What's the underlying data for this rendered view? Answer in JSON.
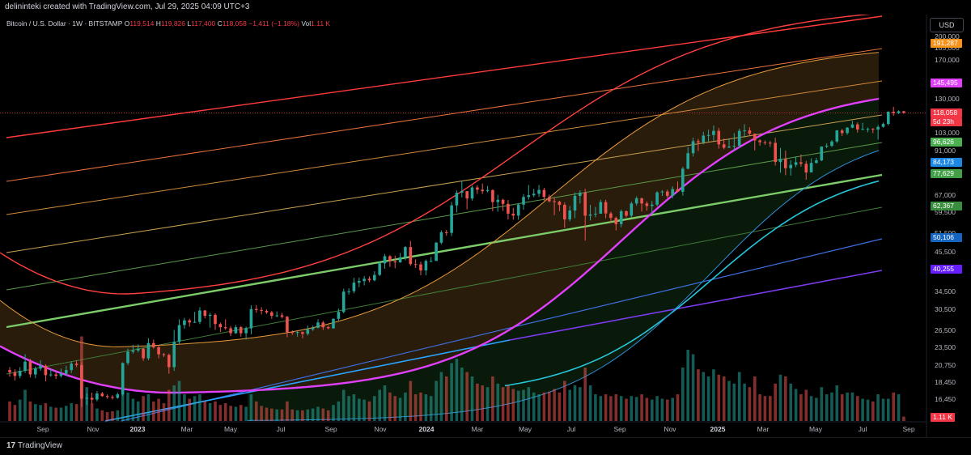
{
  "header": {
    "credit": "delininteki created with TradingView.com, Jul 29, 2025 04:09 UTC+3"
  },
  "legend": {
    "symbol": "Bitcoin / U.S. Dollar · 1W · BITSTAMP",
    "o_label": "O",
    "o": "119,514",
    "h_label": "H",
    "h": "119,826",
    "l_label": "L",
    "l": "117,400",
    "c_label": "C",
    "c": "118,058",
    "change": "−1,411 (−1.18%)",
    "vol_label": "Vol",
    "vol": "1.11 K"
  },
  "currency": "USD",
  "footer": {
    "brand": "TradingView"
  },
  "colors": {
    "background": "#000000",
    "up": "#26a69a",
    "down": "#ef5350",
    "magenta": "#e040fb",
    "red_curve": "#ff4d4d",
    "orange_band": "#e69a3c",
    "green_line": "#66bb6a",
    "cyan_curve": "#26c6da",
    "blue_line": "#2962ff",
    "purple_line": "#7b1fa2"
  },
  "chart_data": {
    "type": "candlestick",
    "scale": "log",
    "ylim": [
      15000,
      200000
    ],
    "y_ticks": [
      200000,
      185000,
      170000,
      130000,
      103000,
      91000,
      67000,
      59500,
      51500,
      45500,
      34500,
      30500,
      26500,
      23500,
      20750,
      18450,
      16450
    ],
    "y_tick_labels": [
      "200,000",
      "185,000",
      "170,000",
      "130,000",
      "103,000",
      "91,000",
      "67,000",
      "59,500",
      "51,500",
      "45,500",
      "34,500",
      "30,500",
      "26,500",
      "23,500",
      "20,750",
      "18,450",
      "16,450"
    ],
    "x_ticks": [
      "Sep",
      "Nov",
      "2023",
      "Mar",
      "May",
      "Jul",
      "Sep",
      "Nov",
      "2024",
      "Mar",
      "May",
      "Jul",
      "Sep",
      "Nov",
      "2025",
      "Mar",
      "May",
      "Jul",
      "Sep"
    ],
    "x_tick_bold": [
      "2023",
      "2024",
      "2025"
    ],
    "price_labels": [
      {
        "value": 191287,
        "text": "191,287",
        "color": "#f7931a"
      },
      {
        "value": 145495,
        "text": "145,495",
        "color": "#e040fb"
      },
      {
        "value": 118058,
        "text": "118,058",
        "color": "#f23645"
      },
      {
        "value": 118058,
        "text": "5d 23h",
        "color": "#f23645"
      },
      {
        "value": 96626,
        "text": "96,626",
        "color": "#4caf50"
      },
      {
        "value": 84173,
        "text": "84,173",
        "color": "#1e88e5"
      },
      {
        "value": 77629,
        "text": "77,629",
        "color": "#43a047"
      },
      {
        "value": 62367,
        "text": "62,367",
        "color": "#388e3c"
      },
      {
        "value": 50106,
        "text": "50,106",
        "color": "#1565c0"
      },
      {
        "value": 40255,
        "text": "40,255",
        "color": "#651fff"
      }
    ],
    "volume_last": "1.11 K",
    "candles": [
      [
        20100,
        19800,
        20500,
        19200
      ],
      [
        19800,
        19300,
        20200,
        18700
      ],
      [
        19300,
        20000,
        20500,
        19000
      ],
      [
        20000,
        21300,
        22400,
        19700
      ],
      [
        21300,
        19500,
        21700,
        19100
      ],
      [
        19500,
        20300,
        20600,
        19000
      ],
      [
        20300,
        20700,
        21500,
        20000
      ],
      [
        20700,
        19400,
        20900,
        18600
      ],
      [
        19400,
        19500,
        20200,
        19200
      ],
      [
        19500,
        19300,
        19800,
        18900
      ],
      [
        19300,
        19600,
        20300,
        19100
      ],
      [
        19600,
        20100,
        20700,
        19300
      ],
      [
        20100,
        21000,
        21300,
        19700
      ],
      [
        21000,
        20800,
        21500,
        20500
      ],
      [
        20800,
        16500,
        21200,
        15600
      ],
      [
        16500,
        16600,
        17100,
        15800
      ],
      [
        16600,
        16400,
        17200,
        16000
      ],
      [
        16400,
        17100,
        17400,
        16200
      ],
      [
        17100,
        16800,
        17300,
        16700
      ],
      [
        16800,
        16700,
        17000,
        16500
      ],
      [
        16700,
        16600,
        16900,
        16400
      ],
      [
        16600,
        17000,
        17200,
        16500
      ],
      [
        17000,
        21100,
        21200,
        16800
      ],
      [
        21100,
        22800,
        23300,
        20800
      ],
      [
        22800,
        23000,
        23900,
        22500
      ],
      [
        23000,
        23300,
        24000,
        22700
      ],
      [
        23300,
        21800,
        23400,
        21400
      ],
      [
        21800,
        24200,
        25000,
        21500
      ],
      [
        24200,
        23500,
        24800,
        23300
      ],
      [
        23500,
        22400,
        23900,
        21800
      ],
      [
        22400,
        22300,
        22600,
        22000
      ],
      [
        22300,
        20500,
        22500,
        19600
      ],
      [
        20500,
        24400,
        26500,
        20000
      ],
      [
        24400,
        27400,
        28500,
        24000
      ],
      [
        27400,
        28300,
        28800,
        26700
      ],
      [
        28300,
        27900,
        28600,
        27100
      ],
      [
        27900,
        28000,
        30000,
        27800
      ],
      [
        28000,
        30300,
        31000,
        27600
      ],
      [
        30300,
        29200,
        30400,
        28700
      ],
      [
        29200,
        29400,
        29800,
        26900
      ],
      [
        29400,
        27600,
        29700,
        26500
      ],
      [
        27600,
        27000,
        27900,
        26100
      ],
      [
        27000,
        26800,
        28500,
        26500
      ],
      [
        26800,
        25900,
        27200,
        25400
      ],
      [
        25900,
        27000,
        27400,
        25800
      ],
      [
        27000,
        25900,
        27200,
        25300
      ],
      [
        25900,
        26800,
        27100,
        24800
      ],
      [
        26800,
        30600,
        31400,
        25700
      ],
      [
        30600,
        30400,
        31400,
        29800
      ],
      [
        30400,
        30200,
        31000,
        29500
      ],
      [
        30200,
        29900,
        30500,
        29600
      ],
      [
        29900,
        29200,
        30200,
        28600
      ],
      [
        29200,
        29300,
        30100,
        28900
      ],
      [
        29300,
        29000,
        29800,
        28700
      ],
      [
        29000,
        26100,
        29200,
        25200
      ],
      [
        26100,
        26000,
        26400,
        25600
      ],
      [
        26000,
        26100,
        26300,
        25300
      ],
      [
        26100,
        25800,
        26200,
        25000
      ],
      [
        25800,
        26600,
        27300,
        25500
      ],
      [
        26600,
        26900,
        27300,
        26300
      ],
      [
        26900,
        27900,
        28500,
        26800
      ],
      [
        27900,
        27000,
        28200,
        26500
      ],
      [
        27000,
        26800,
        27300,
        26600
      ],
      [
        26800,
        28600,
        28700,
        26700
      ],
      [
        28600,
        30000,
        30700,
        28200
      ],
      [
        30000,
        34500,
        35200,
        29700
      ],
      [
        34500,
        34600,
        35300,
        33800
      ],
      [
        34600,
        36700,
        37900,
        34100
      ],
      [
        36700,
        37100,
        38000,
        35600
      ],
      [
        37100,
        37700,
        38400,
        36000
      ],
      [
        37700,
        37300,
        38300,
        36800
      ],
      [
        37300,
        38700,
        39700,
        37000
      ],
      [
        38700,
        41900,
        42400,
        38400
      ],
      [
        41900,
        44000,
        44700,
        40400
      ],
      [
        44000,
        42500,
        44400,
        40900
      ],
      [
        42500,
        42200,
        44200,
        40500
      ],
      [
        42200,
        43700,
        45000,
        42100
      ],
      [
        43700,
        46900,
        47200,
        42800
      ],
      [
        46900,
        41700,
        48900,
        41200
      ],
      [
        41700,
        41600,
        43100,
        40600
      ],
      [
        41600,
        39900,
        42400,
        38600
      ],
      [
        39900,
        42600,
        43000,
        38600
      ],
      [
        42600,
        42600,
        43800,
        42300
      ],
      [
        42600,
        48300,
        48600,
        42600
      ],
      [
        48300,
        51900,
        52600,
        47800
      ],
      [
        51900,
        51700,
        52800,
        50700
      ],
      [
        51700,
        62500,
        64000,
        50600
      ],
      [
        62500,
        68200,
        69200,
        59500
      ],
      [
        68200,
        68900,
        73800,
        66000
      ],
      [
        68900,
        65500,
        68900,
        60800
      ],
      [
        65500,
        70700,
        71500,
        64600
      ],
      [
        70700,
        69600,
        71700,
        67600
      ],
      [
        69600,
        68900,
        72600,
        67600
      ],
      [
        68900,
        69400,
        71400,
        68300
      ],
      [
        69400,
        63900,
        69800,
        60000
      ],
      [
        63900,
        64900,
        67200,
        59800
      ],
      [
        64900,
        63100,
        65400,
        60100
      ],
      [
        63100,
        59000,
        64800,
        56700
      ],
      [
        59000,
        58200,
        61400,
        56600
      ],
      [
        58200,
        62800,
        63500,
        56600
      ],
      [
        62800,
        66200,
        67500,
        60600
      ],
      [
        66200,
        67000,
        71900,
        65000
      ],
      [
        67000,
        67700,
        70000,
        66100
      ],
      [
        67700,
        69500,
        71900,
        66200
      ],
      [
        69500,
        66200,
        70500,
        64500
      ],
      [
        66200,
        64300,
        67300,
        63800
      ],
      [
        64300,
        64100,
        65900,
        58400
      ],
      [
        64100,
        62700,
        64500,
        60000
      ],
      [
        62700,
        56700,
        63700,
        53500
      ],
      [
        56700,
        60300,
        62200,
        56000
      ],
      [
        60300,
        66700,
        68300,
        57200
      ],
      [
        66700,
        68200,
        69300,
        63300
      ],
      [
        68200,
        58200,
        70000,
        49000
      ],
      [
        58200,
        58700,
        62700,
        56300
      ],
      [
        58700,
        59000,
        61800,
        57600
      ],
      [
        59000,
        63900,
        65000,
        59000
      ],
      [
        63900,
        59100,
        64900,
        57200
      ],
      [
        59100,
        57300,
        59800,
        55600
      ],
      [
        57300,
        54900,
        57800,
        52600
      ],
      [
        54900,
        60000,
        60700,
        53700
      ],
      [
        60000,
        58200,
        60300,
        57500
      ],
      [
        58200,
        63300,
        64100,
        57500
      ],
      [
        63300,
        65600,
        66500,
        62400
      ],
      [
        65600,
        63300,
        65900,
        59900
      ],
      [
        63300,
        62200,
        64200,
        60200
      ],
      [
        62200,
        62800,
        64400,
        58900
      ],
      [
        62800,
        68300,
        68900,
        62100
      ],
      [
        68300,
        68700,
        69400,
        66700
      ],
      [
        68700,
        66700,
        69600,
        65800
      ],
      [
        66700,
        69900,
        71200,
        65600
      ],
      [
        69900,
        68600,
        73600,
        68500
      ],
      [
        68600,
        80400,
        81500,
        66800
      ],
      [
        80400,
        89500,
        93400,
        80100
      ],
      [
        89500,
        97200,
        99600,
        87500
      ],
      [
        97200,
        96400,
        98800,
        90800
      ],
      [
        96400,
        101000,
        103700,
        95100
      ],
      [
        101000,
        101400,
        105200,
        96800
      ],
      [
        101400,
        104400,
        108300,
        97500
      ],
      [
        104400,
        95100,
        106500,
        92400
      ],
      [
        95100,
        92900,
        99000,
        91900
      ],
      [
        92900,
        93700,
        98900,
        93000
      ],
      [
        93700,
        94200,
        102700,
        91200
      ],
      [
        94200,
        104400,
        106000,
        92800
      ],
      [
        104400,
        104700,
        109300,
        99500
      ],
      [
        104700,
        102400,
        107000,
        101400
      ],
      [
        102400,
        97700,
        102500,
        91200
      ],
      [
        97700,
        96500,
        98500,
        94200
      ],
      [
        96500,
        96200,
        97700,
        94800
      ],
      [
        96200,
        96100,
        97500,
        93500
      ],
      [
        96100,
        84200,
        99500,
        82200
      ],
      [
        84200,
        86100,
        92800,
        78200
      ],
      [
        86100,
        80700,
        91000,
        76900
      ],
      [
        80700,
        82600,
        85200,
        76700
      ],
      [
        82600,
        84100,
        87300,
        81300
      ],
      [
        84100,
        83200,
        88700,
        81600
      ],
      [
        83200,
        78400,
        84900,
        74500
      ],
      [
        78400,
        83700,
        86400,
        78400
      ],
      [
        83700,
        85200,
        86700,
        83300
      ],
      [
        85200,
        93700,
        93800,
        84700
      ],
      [
        93700,
        94200,
        95700,
        92700
      ],
      [
        94200,
        97000,
        97900,
        93400
      ],
      [
        97000,
        104700,
        105000,
        96000
      ],
      [
        104700,
        102800,
        105800,
        100800
      ],
      [
        102800,
        106700,
        107100,
        101600
      ],
      [
        106700,
        109100,
        111900,
        106300
      ],
      [
        109100,
        105400,
        110600,
        103100
      ],
      [
        105400,
        105700,
        110300,
        104900
      ],
      [
        105700,
        105800,
        106800,
        103400
      ],
      [
        105800,
        105300,
        106400,
        102800
      ],
      [
        105300,
        107300,
        108700,
        98200
      ],
      [
        107300,
        109500,
        110500,
        106700
      ],
      [
        109500,
        119100,
        119500,
        108300
      ],
      [
        119100,
        117900,
        123200,
        115800
      ],
      [
        117900,
        119500,
        120200,
        117200
      ],
      [
        119500,
        118100,
        119800,
        117400
      ]
    ],
    "volumes": [
      0.22,
      0.18,
      0.24,
      0.35,
      0.22,
      0.19,
      0.18,
      0.2,
      0.16,
      0.15,
      0.15,
      0.17,
      0.2,
      0.19,
      0.95,
      0.38,
      0.2,
      0.14,
      0.12,
      0.1,
      0.11,
      0.12,
      0.3,
      0.32,
      0.25,
      0.22,
      0.28,
      0.3,
      0.22,
      0.25,
      0.2,
      0.35,
      0.4,
      0.45,
      0.3,
      0.25,
      0.28,
      0.3,
      0.22,
      0.2,
      0.22,
      0.18,
      0.2,
      0.17,
      0.16,
      0.18,
      0.16,
      0.3,
      0.22,
      0.17,
      0.15,
      0.14,
      0.13,
      0.13,
      0.22,
      0.13,
      0.12,
      0.12,
      0.13,
      0.14,
      0.16,
      0.14,
      0.12,
      0.18,
      0.22,
      0.35,
      0.28,
      0.3,
      0.25,
      0.24,
      0.22,
      0.28,
      0.35,
      0.4,
      0.32,
      0.28,
      0.26,
      0.32,
      0.45,
      0.3,
      0.32,
      0.3,
      0.28,
      0.45,
      0.55,
      0.5,
      0.65,
      0.7,
      0.6,
      0.55,
      0.5,
      0.42,
      0.4,
      0.38,
      0.5,
      0.42,
      0.38,
      0.4,
      0.36,
      0.34,
      0.35,
      0.38,
      0.32,
      0.3,
      0.32,
      0.33,
      0.36,
      0.32,
      0.45,
      0.35,
      0.4,
      0.38,
      0.6,
      0.4,
      0.3,
      0.28,
      0.3,
      0.28,
      0.3,
      0.28,
      0.25,
      0.28,
      0.27,
      0.3,
      0.26,
      0.24,
      0.28,
      0.25,
      0.24,
      0.26,
      0.3,
      0.6,
      0.8,
      0.75,
      0.58,
      0.55,
      0.5,
      0.58,
      0.52,
      0.5,
      0.45,
      0.42,
      0.55,
      0.42,
      0.38,
      0.5,
      0.3,
      0.28,
      0.28,
      0.42,
      0.52,
      0.5,
      0.42,
      0.36,
      0.3,
      0.35,
      0.28,
      0.26,
      0.38,
      0.3,
      0.32,
      0.4,
      0.3,
      0.32,
      0.32,
      0.28,
      0.25,
      0.24,
      0.22,
      0.3,
      0.25,
      0.25,
      0.32,
      0.3,
      0.05
    ]
  }
}
